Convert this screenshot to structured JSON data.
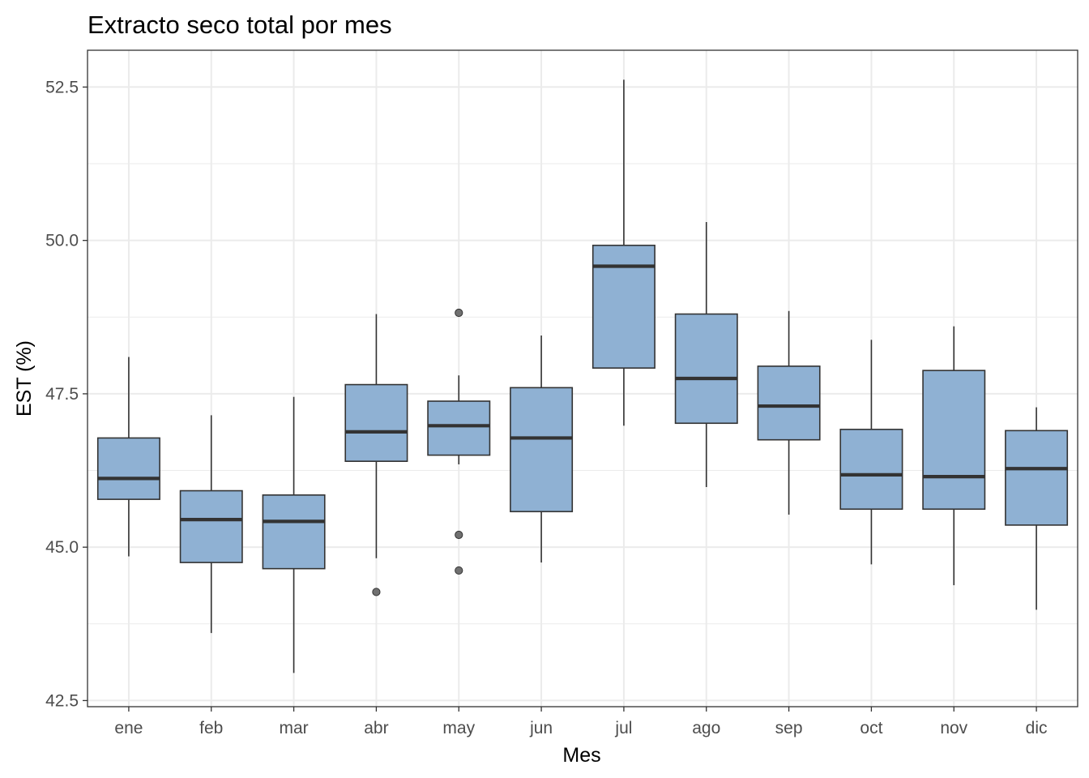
{
  "chart_data": {
    "type": "boxplot",
    "title": "Extracto seco total por mes",
    "xlabel": "Mes",
    "ylabel": "EST (%)",
    "ylim": [
      42.4,
      53.1
    ],
    "yticks": [
      42.5,
      45.0,
      47.5,
      50.0,
      52.5
    ],
    "ytick_labels": [
      "42.5",
      "45.0",
      "47.5",
      "50.0",
      "52.5"
    ],
    "grid": true,
    "fill_color": "#8fb1d3",
    "outline_color": "#333333",
    "grid_color": "#ebebeb",
    "categories": [
      "ene",
      "feb",
      "mar",
      "abr",
      "may",
      "jun",
      "jul",
      "ago",
      "sep",
      "oct",
      "nov",
      "dic"
    ],
    "boxes": [
      {
        "whisker_low": 44.85,
        "q1": 45.78,
        "median": 46.12,
        "q3": 46.78,
        "whisker_high": 48.1,
        "outliers": []
      },
      {
        "whisker_low": 43.6,
        "q1": 44.75,
        "median": 45.45,
        "q3": 45.92,
        "whisker_high": 47.15,
        "outliers": []
      },
      {
        "whisker_low": 42.95,
        "q1": 44.65,
        "median": 45.42,
        "q3": 45.85,
        "whisker_high": 47.45,
        "outliers": []
      },
      {
        "whisker_low": 44.82,
        "q1": 46.4,
        "median": 46.88,
        "q3": 47.65,
        "whisker_high": 48.8,
        "outliers": [
          44.27
        ]
      },
      {
        "whisker_low": 46.35,
        "q1": 46.5,
        "median": 46.98,
        "q3": 47.38,
        "whisker_high": 47.8,
        "outliers": [
          48.82,
          45.2,
          44.62
        ]
      },
      {
        "whisker_low": 44.75,
        "q1": 45.58,
        "median": 46.78,
        "q3": 47.6,
        "whisker_high": 48.45,
        "outliers": []
      },
      {
        "whisker_low": 46.98,
        "q1": 47.92,
        "median": 49.58,
        "q3": 49.92,
        "whisker_high": 52.62,
        "outliers": []
      },
      {
        "whisker_low": 45.98,
        "q1": 47.02,
        "median": 47.75,
        "q3": 48.8,
        "whisker_high": 50.3,
        "outliers": []
      },
      {
        "whisker_low": 45.53,
        "q1": 46.75,
        "median": 47.3,
        "q3": 47.95,
        "whisker_high": 48.85,
        "outliers": []
      },
      {
        "whisker_low": 44.72,
        "q1": 45.62,
        "median": 46.18,
        "q3": 46.92,
        "whisker_high": 48.38,
        "outliers": []
      },
      {
        "whisker_low": 44.38,
        "q1": 45.62,
        "median": 46.15,
        "q3": 47.88,
        "whisker_high": 48.6,
        "outliers": []
      },
      {
        "whisker_low": 43.98,
        "q1": 45.36,
        "median": 46.28,
        "q3": 46.9,
        "whisker_high": 47.28,
        "outliers": []
      }
    ]
  }
}
